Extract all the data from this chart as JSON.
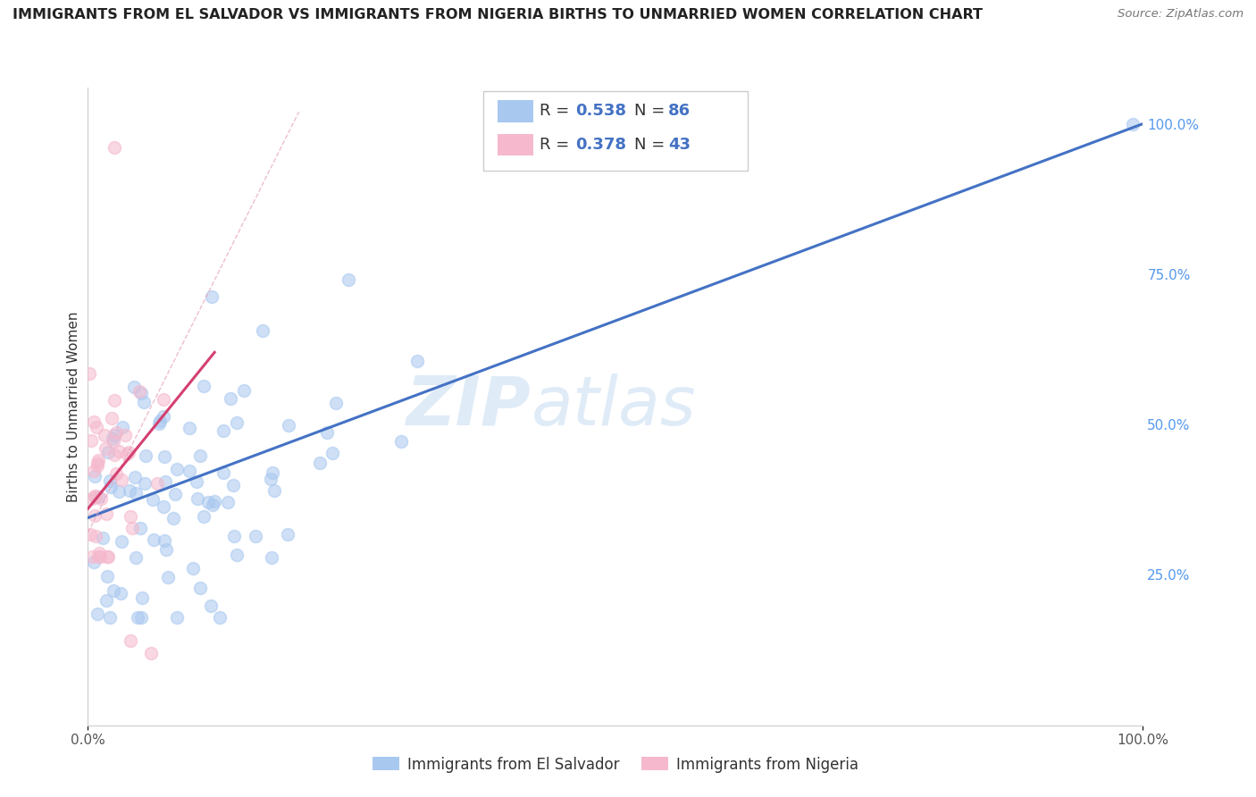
{
  "title": "IMMIGRANTS FROM EL SALVADOR VS IMMIGRANTS FROM NIGERIA BIRTHS TO UNMARRIED WOMEN CORRELATION CHART",
  "source": "Source: ZipAtlas.com",
  "ylabel": "Births to Unmarried Women",
  "watermark_zip": "ZIP",
  "watermark_atlas": "atlas",
  "legend_R_blue": "0.538",
  "legend_N_blue": "86",
  "legend_R_pink": "0.378",
  "legend_N_pink": "43",
  "blue_color": "#a8c8f0",
  "pink_color": "#f5b8cc",
  "trend_blue_color": "#4472c4",
  "trend_pink_color": "#d44070",
  "trend_pink_dash_color": "#e8a8bc",
  "background_color": "#ffffff",
  "grid_color": "#cccccc",
  "title_fontsize": 11.5,
  "label_fontsize": 11,
  "tick_fontsize": 11,
  "legend_text_color": "#4472c4",
  "right_tick_color": "#5599ee"
}
